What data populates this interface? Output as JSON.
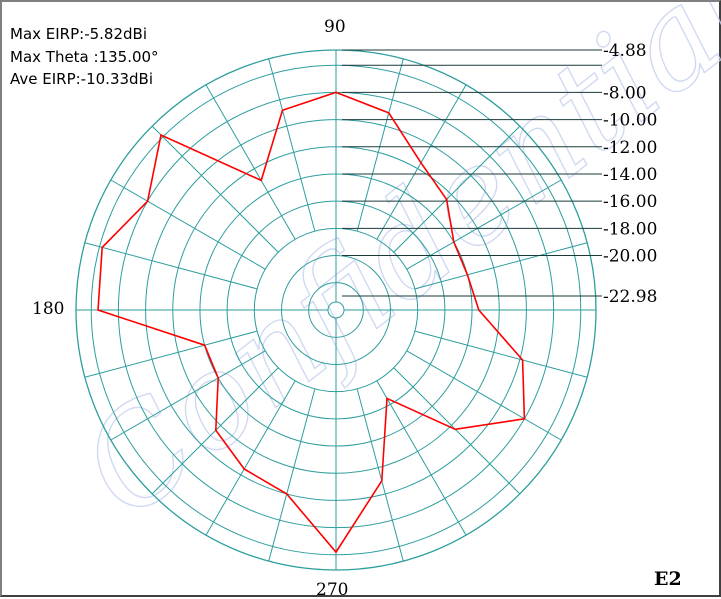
{
  "info": {
    "max_eirp": "Max EIRP:-5.82dBi",
    "max_theta": "Max Theta :135.00°",
    "ave_eirp": "Ave EIRP:-10.33dBi"
  },
  "angle_labels": [
    "90",
    "180",
    "270"
  ],
  "plot_tag": "E2",
  "watermark_text": "Confidential for EX Only",
  "colors": {
    "grid": "#2e9e9e",
    "trace": "#ff0000",
    "ticks": "#1a3a3a"
  },
  "chart_data": {
    "type": "polar",
    "r_unit": "dBi",
    "r_range": [
      -22.98,
      -4.88
    ],
    "r_tick_labels": [
      "-4.88",
      "-8.00",
      "-10.00",
      "-12.00",
      "-14.00",
      "-16.00",
      "-18.00",
      "-20.00",
      "-22.98"
    ],
    "r_ticks": [
      -4.88,
      -6.0,
      -8.0,
      -10.0,
      -12.0,
      -14.0,
      -16.0,
      -18.0,
      -20.0,
      -22.98
    ],
    "angular_grid_step_deg": 15,
    "grid": true,
    "series": [
      {
        "theta": [
          0,
          15,
          30,
          45,
          60,
          75,
          90,
          105,
          120,
          135,
          150,
          165,
          180,
          195,
          210,
          225,
          240,
          255,
          270,
          285,
          300,
          315,
          330,
          345
        ],
        "values": [
          -13.5,
          -14.0,
          -14.0,
          -12.5,
          -11.5,
          -9.0,
          -8.0,
          -8.8,
          -13.0,
          -5.8,
          -8.0,
          -6.2,
          -6.5,
          -14.0,
          -14.0,
          -11.5,
          -10.5,
          -10.0,
          -6.2,
          -11.0,
          -16.5,
          -11.6,
          -8.0,
          -9.8
        ]
      }
    ]
  }
}
